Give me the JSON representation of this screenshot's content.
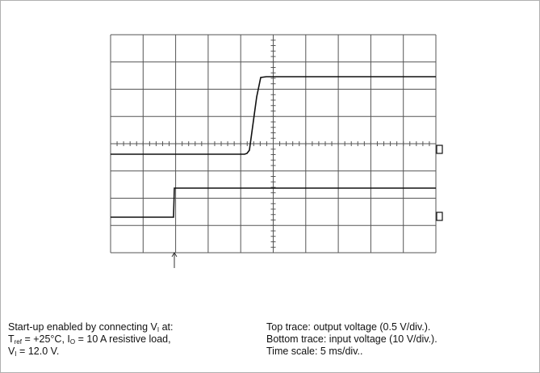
{
  "caption_left": {
    "lines": [
      [
        {
          "t": "Start-up enabled by connecting V"
        },
        {
          "sub": "I"
        },
        {
          "t": " at:"
        }
      ],
      [
        {
          "t": "T"
        },
        {
          "sub": "ref"
        },
        {
          "t": " = +25°C, I"
        },
        {
          "sub": "O"
        },
        {
          "t": " = 10 A resistive load,"
        }
      ],
      [
        {
          "t": "V"
        },
        {
          "sub": "I"
        },
        {
          "t": " = 12.0 V."
        }
      ]
    ]
  },
  "caption_right": {
    "lines": [
      "Top trace: output voltage (0.5 V/div.).",
      "Bottom trace: input voltage (10 V/div.).",
      "Time scale: 5 ms/div.."
    ]
  }
}
